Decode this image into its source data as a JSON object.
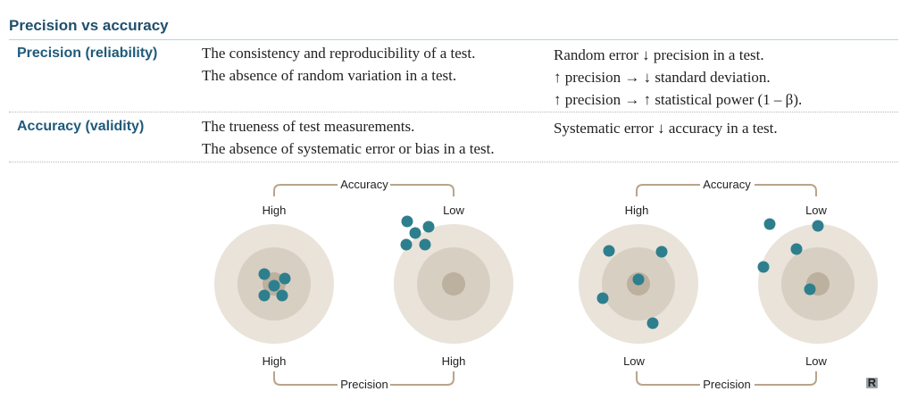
{
  "title": "Precision vs accuracy",
  "rows": [
    {
      "heading": "Precision (reliability)",
      "definition": [
        "The consistency and reproducibility of a test.",
        "The absence of random variation in a test."
      ],
      "notes": [
        "Random error ↓ precision in a test.",
        "↑ precision → ↓ standard deviation.",
        "↑ precision → ↑ statistical power (1 – β)."
      ]
    },
    {
      "heading": "Accuracy (validity)",
      "definition": [
        "The trueness of test measurements.",
        "The absence of systematic error or bias in a test."
      ],
      "notes": [
        "Systematic error ↓ accuracy in a test."
      ]
    }
  ],
  "figure": {
    "groups": [
      {
        "accuracy_label": "Accuracy",
        "precision_label": "Precision"
      },
      {
        "accuracy_label": "Accuracy",
        "precision_label": "Precision"
      }
    ],
    "targets": [
      {
        "accuracy_level": "High",
        "precision_level": "High"
      },
      {
        "accuracy_level": "Low",
        "precision_level": "High"
      },
      {
        "accuracy_level": "High",
        "precision_level": "Low"
      },
      {
        "accuracy_level": "Low",
        "precision_level": "Low"
      }
    ],
    "colors": {
      "ring_outer": "#e9e3da",
      "ring_middle": "#d8cfc3",
      "bullseye": "#bcb09e",
      "dot": "#2e7f8d",
      "bracket": "#b9a48a"
    }
  },
  "logo": "R"
}
